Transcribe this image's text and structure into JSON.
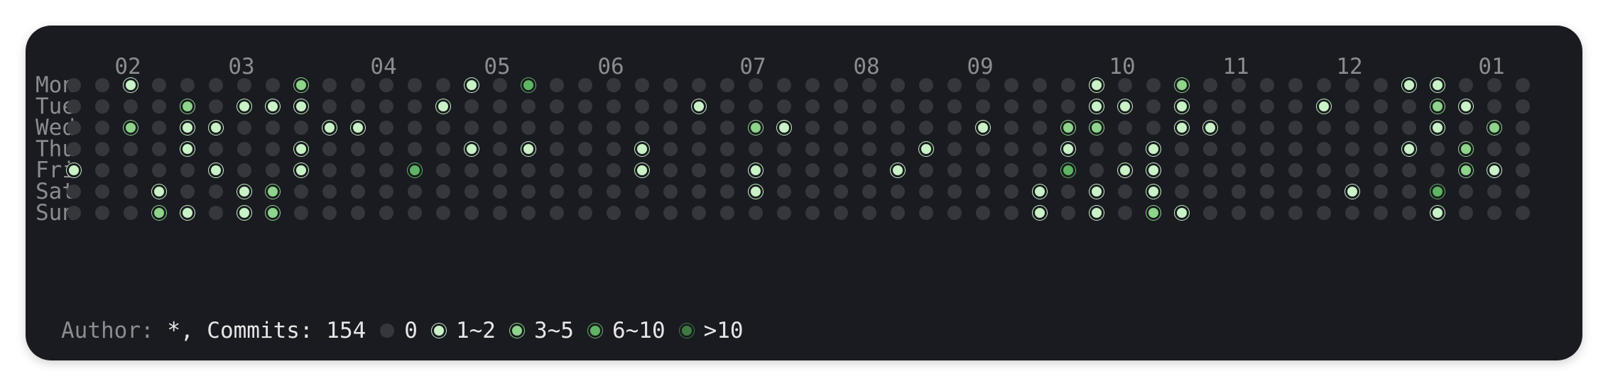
{
  "months": [
    "02",
    "03",
    "04",
    "05",
    "06",
    "07",
    "08",
    "09",
    "10",
    "11",
    "12",
    "01"
  ],
  "month_week_index": [
    1,
    5,
    10,
    14,
    18,
    23,
    27,
    31,
    36,
    40,
    44,
    49
  ],
  "days": [
    "Mon",
    "Tue",
    "Wed",
    "Thu",
    "Fri",
    "Sat",
    "Sun"
  ],
  "weeks": 52,
  "activity": [
    [
      [
        2,
        1
      ],
      [
        8,
        2
      ],
      [
        14,
        1
      ],
      [
        16,
        3
      ],
      [
        36,
        1
      ],
      [
        39,
        2
      ],
      [
        47,
        1
      ],
      [
        48,
        1
      ]
    ],
    [
      [
        4,
        2
      ],
      [
        6,
        1
      ],
      [
        7,
        1
      ],
      [
        8,
        1
      ],
      [
        13,
        1
      ],
      [
        22,
        1
      ],
      [
        36,
        1
      ],
      [
        37,
        1
      ],
      [
        39,
        1
      ],
      [
        44,
        1
      ],
      [
        48,
        2
      ],
      [
        49,
        1
      ]
    ],
    [
      [
        2,
        2
      ],
      [
        4,
        1
      ],
      [
        5,
        1
      ],
      [
        9,
        1
      ],
      [
        10,
        1
      ],
      [
        24,
        2
      ],
      [
        25,
        1
      ],
      [
        32,
        1
      ],
      [
        35,
        2
      ],
      [
        36,
        2
      ],
      [
        39,
        1
      ],
      [
        40,
        1
      ],
      [
        48,
        1
      ],
      [
        50,
        2
      ]
    ],
    [
      [
        4,
        1
      ],
      [
        8,
        1
      ],
      [
        14,
        1
      ],
      [
        16,
        1
      ],
      [
        20,
        1
      ],
      [
        30,
        1
      ],
      [
        35,
        1
      ],
      [
        38,
        1
      ],
      [
        47,
        1
      ],
      [
        49,
        2
      ]
    ],
    [
      [
        0,
        1
      ],
      [
        5,
        1
      ],
      [
        8,
        1
      ],
      [
        12,
        3
      ],
      [
        20,
        1
      ],
      [
        24,
        1
      ],
      [
        29,
        1
      ],
      [
        35,
        3
      ],
      [
        37,
        1
      ],
      [
        38,
        1
      ],
      [
        49,
        2
      ],
      [
        50,
        1
      ]
    ],
    [
      [
        3,
        1
      ],
      [
        6,
        1
      ],
      [
        7,
        2
      ],
      [
        24,
        1
      ],
      [
        34,
        1
      ],
      [
        36,
        1
      ],
      [
        38,
        1
      ],
      [
        45,
        1
      ],
      [
        48,
        3
      ]
    ],
    [
      [
        3,
        2
      ],
      [
        4,
        1
      ],
      [
        6,
        1
      ],
      [
        7,
        2
      ],
      [
        34,
        1
      ],
      [
        36,
        1
      ],
      [
        38,
        2
      ],
      [
        39,
        1
      ],
      [
        48,
        1
      ]
    ]
  ],
  "footer": {
    "author_label": "Author:",
    "author_value": " *, Commits: 154"
  },
  "legend": [
    {
      "label": "0",
      "level": 0
    },
    {
      "label": "1~2",
      "level": 1
    },
    {
      "label": "3~5",
      "level": 2
    },
    {
      "label": "6~10",
      "level": 3
    },
    {
      "label": ">10",
      "level": 4
    }
  ],
  "colors": {
    "background": "#1a1b21",
    "empty": "#36373c",
    "level1": "#c9f2c6",
    "level2": "#8ed48a",
    "level3": "#5fb563",
    "level4": "#3e7a42",
    "muted_text": "#8b8c90",
    "text": "#e6e6e6"
  }
}
